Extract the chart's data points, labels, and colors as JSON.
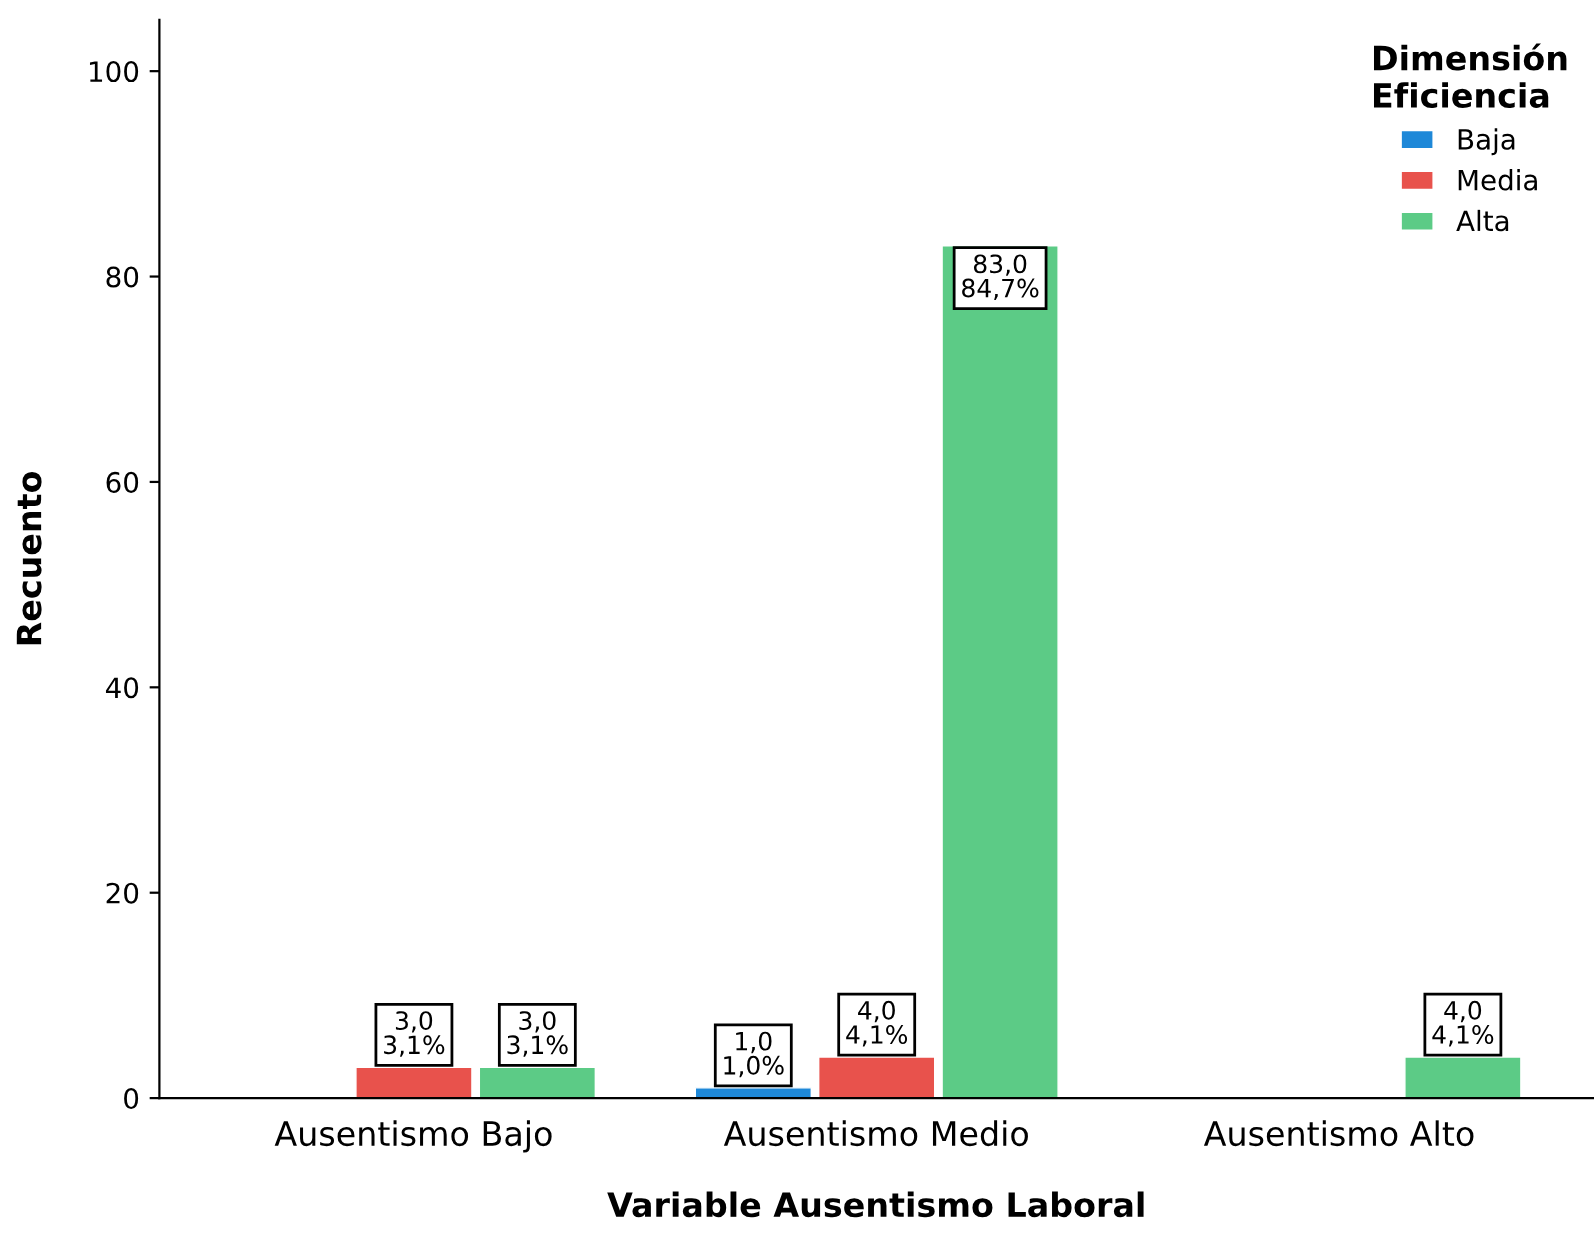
{
  "chart_data": {
    "type": "bar",
    "xlabel": "Variable Ausentismo Laboral",
    "ylabel": "Recuento",
    "legend_title": "Dimensión\nEficiencia",
    "categories": [
      "Ausentismo Bajo",
      "Ausentismo Medio",
      "Ausentismo Alto"
    ],
    "series": [
      {
        "name": "Baja",
        "color": "#1e88d8",
        "values": [
          null,
          1,
          null
        ],
        "value_labels": [
          null,
          "1,0\n1,0%",
          null
        ]
      },
      {
        "name": "Media",
        "color": "#e8524c",
        "values": [
          3,
          4,
          null
        ],
        "value_labels": [
          "3,0\n3,1%",
          "4,0\n4,1%",
          null
        ]
      },
      {
        "name": "Alta",
        "color": "#5ccb86",
        "values": [
          3,
          83,
          4
        ],
        "value_labels": [
          "3,0\n3,1%",
          "83,0\n84,7%",
          "4,0\n4,1%"
        ]
      }
    ],
    "ylim": [
      0,
      105
    ],
    "yticks": [
      0,
      20,
      40,
      60,
      80,
      100
    ],
    "grid": false,
    "legend": "top right"
  }
}
